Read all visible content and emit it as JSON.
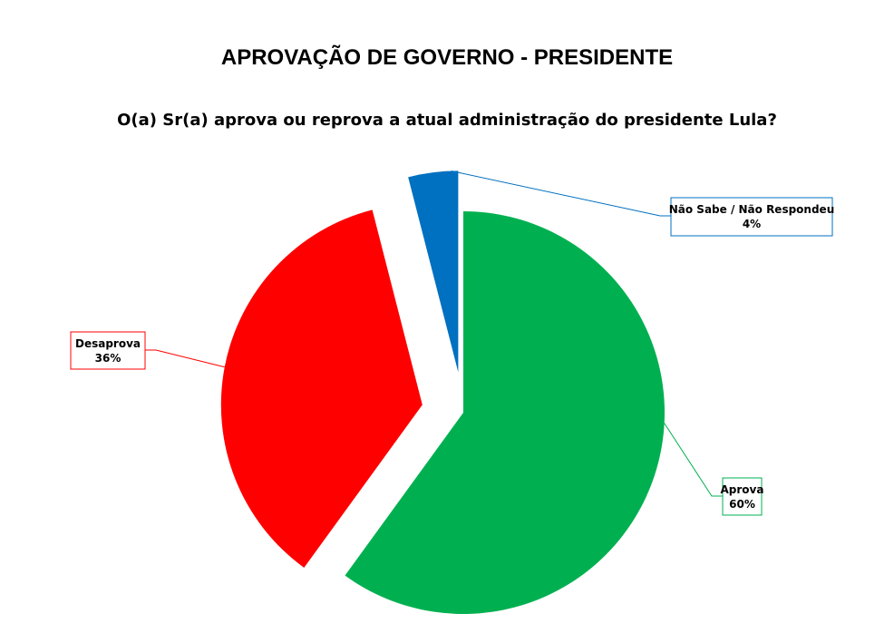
{
  "chart_data": {
    "type": "pie",
    "title": "APROVAÇÃO DE GOVERNO - PRESIDENTE",
    "subtitle": "O(a) Sr(a) aprova ou reprova a atual administração do presidente Lula?",
    "categories": [
      "Aprova",
      "Desaprova",
      "Não Sabe / Não Respondeu"
    ],
    "values": [
      60,
      36,
      4
    ],
    "value_labels": [
      "60%",
      "36%",
      "4%"
    ],
    "colors": [
      "#00b050",
      "#ff0000",
      "#0070c0"
    ]
  }
}
